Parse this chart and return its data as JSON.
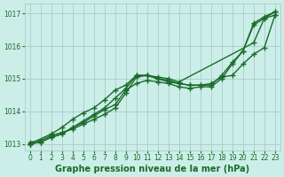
{
  "xlabel": "Graphe pression niveau de la mer (hPa)",
  "background_color": "#cceee8",
  "grid_color": "#aacccc",
  "line_color": "#1a6b2a",
  "xlim": [
    -0.5,
    23.5
  ],
  "ylim": [
    1012.8,
    1017.3
  ],
  "yticks": [
    1013,
    1014,
    1015,
    1016,
    1017
  ],
  "xticks": [
    0,
    1,
    2,
    3,
    4,
    5,
    6,
    7,
    8,
    9,
    10,
    11,
    12,
    13,
    14,
    15,
    16,
    17,
    18,
    19,
    20,
    21,
    22,
    23
  ],
  "series": [
    {
      "x": [
        0,
        1,
        2,
        3,
        4,
        5,
        6,
        7,
        8,
        9,
        10,
        11,
        12,
        13,
        14,
        15,
        16,
        17,
        18,
        19,
        20,
        21,
        22,
        23
      ],
      "y": [
        1013.05,
        1013.1,
        1013.25,
        1013.35,
        1013.45,
        1013.6,
        1013.75,
        1013.9,
        1014.1,
        1014.55,
        1015.05,
        1015.1,
        1015.0,
        1014.95,
        1014.85,
        1014.8,
        1014.8,
        1014.85,
        1015.05,
        1015.1,
        1015.45,
        1015.75,
        1015.95,
        1016.95
      ],
      "has_markers": true
    },
    {
      "x": [
        0,
        1,
        2,
        3,
        4,
        5,
        6,
        7,
        8,
        9,
        10,
        11,
        12,
        13,
        14,
        15,
        16,
        17,
        18,
        19,
        20,
        21,
        22,
        23
      ],
      "y": [
        1013.0,
        1013.05,
        1013.2,
        1013.3,
        1013.5,
        1013.65,
        1013.85,
        1014.05,
        1014.2,
        1014.65,
        1014.85,
        1014.95,
        1014.9,
        1014.85,
        1014.75,
        1014.7,
        1014.75,
        1014.75,
        1015.0,
        1015.45,
        1015.85,
        1016.65,
        1016.85,
        1016.95
      ],
      "has_markers": true
    },
    {
      "x": [
        0,
        2,
        3,
        4,
        5,
        6,
        7,
        8,
        9,
        10,
        11,
        12,
        13,
        14,
        21,
        22,
        23
      ],
      "y": [
        1013.0,
        1013.3,
        1013.5,
        1013.75,
        1013.95,
        1014.1,
        1014.35,
        1014.65,
        1014.8,
        1015.1,
        1015.1,
        1015.05,
        1015.0,
        1014.9,
        1016.1,
        1016.85,
        1017.05
      ],
      "has_markers": true
    },
    {
      "x": [
        0,
        1,
        2,
        3,
        4,
        5,
        6,
        7,
        8,
        9,
        10,
        11,
        12,
        13,
        14,
        15,
        16,
        17,
        18,
        19,
        20,
        21,
        22,
        23
      ],
      "y": [
        1013.0,
        1013.05,
        1013.2,
        1013.3,
        1013.5,
        1013.7,
        1013.9,
        1014.1,
        1014.4,
        1014.7,
        1015.1,
        1015.1,
        1015.0,
        1014.9,
        1014.85,
        1014.8,
        1014.8,
        1014.8,
        1015.1,
        1015.5,
        1015.85,
        1016.7,
        1016.9,
        1017.05
      ],
      "has_markers": true
    }
  ],
  "marker": "+",
  "markersize": 4,
  "linewidth": 1.0,
  "tick_fontsize": 5.5,
  "label_fontsize": 7
}
